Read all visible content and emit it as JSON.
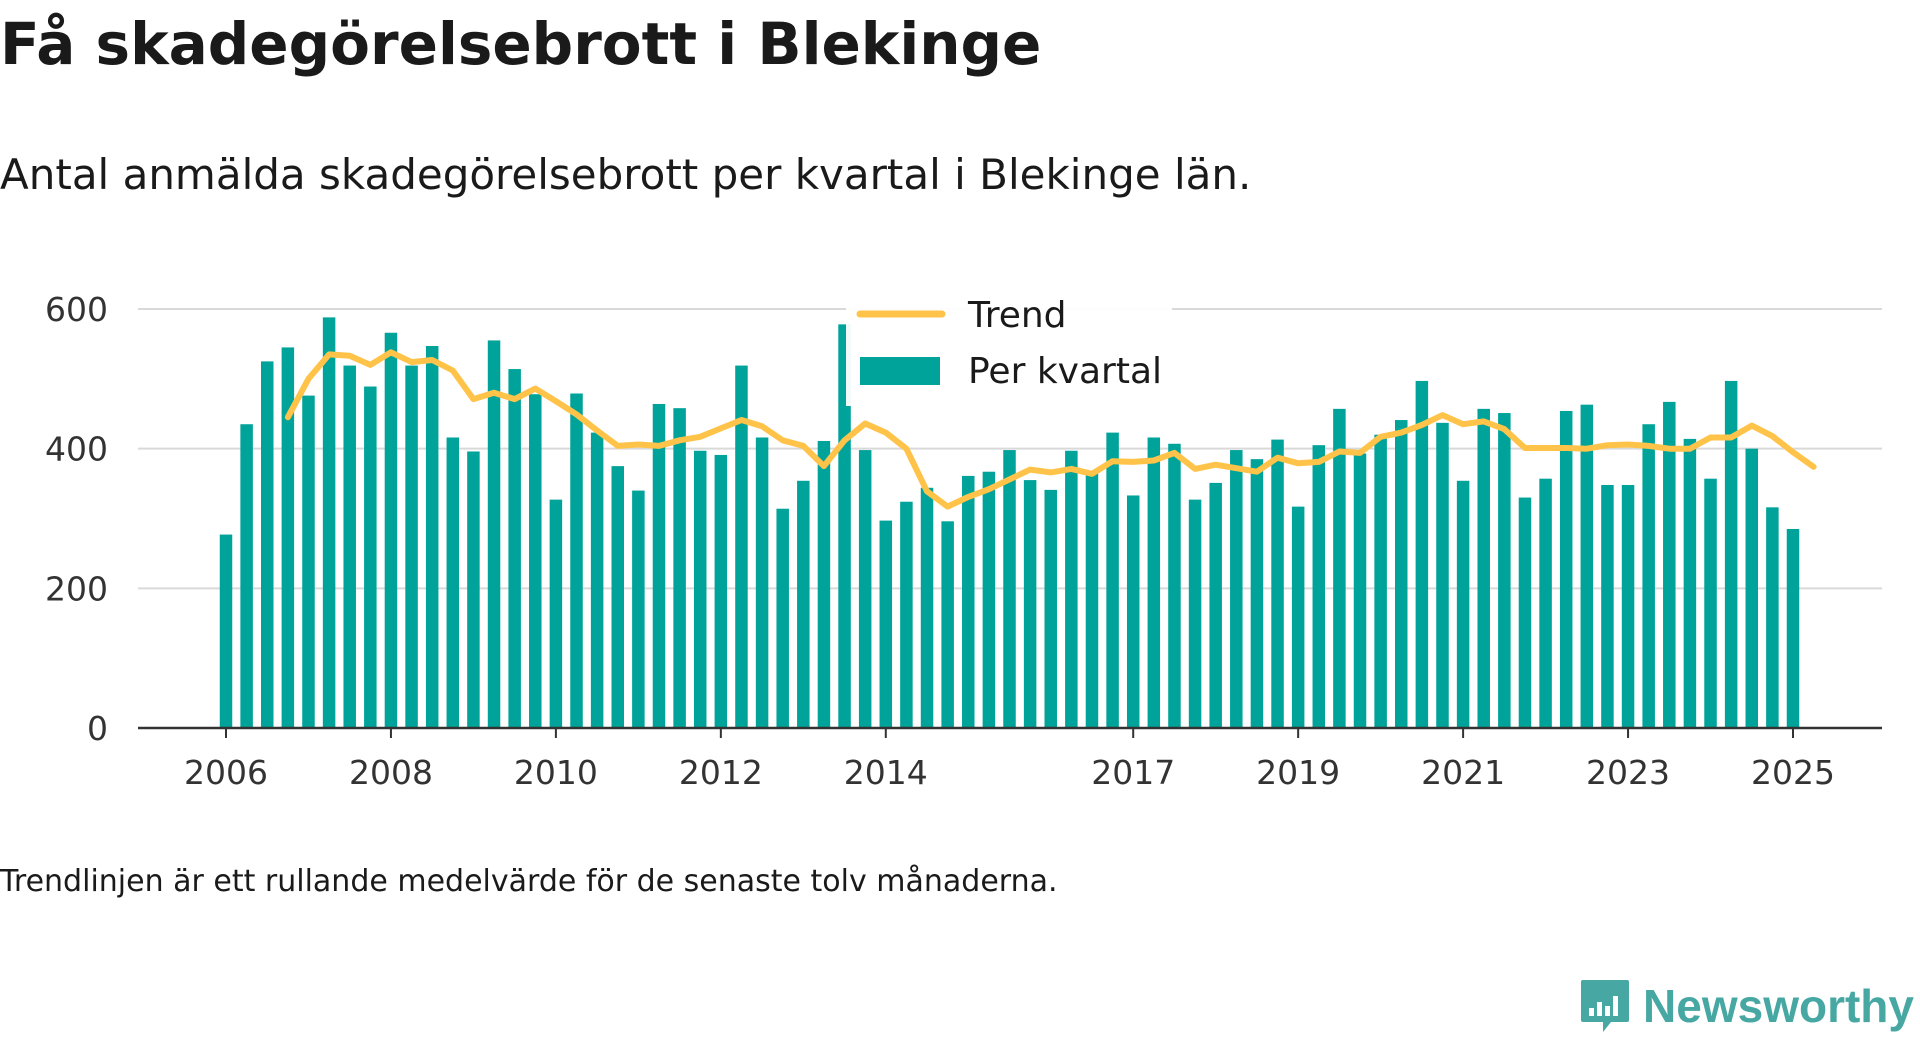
{
  "title": "Få skadegörelsebrott i Blekinge",
  "subtitle": "Antal anmälda skadegörelsebrott per kvartal i Blekinge län.",
  "footnote": "Trendlinjen är ett rullande medelvärde för de senaste tolv månaderna.",
  "brand": {
    "name": "Newsworthy",
    "icon": "newsworthy-logo-icon"
  },
  "colors": {
    "bars": "#00a39a",
    "trend": "#ffc34a",
    "grid": "#d9d9d9",
    "axis": "#333333",
    "brand": "#47a8a3"
  },
  "chart_data": {
    "type": "bar",
    "x_start": "2006 Q1",
    "x_end": "2025 Q1",
    "x_ticks": [
      "2006",
      "2008",
      "2010",
      "2012",
      "2014",
      "2017",
      "2019",
      "2021",
      "2023",
      "2025"
    ],
    "y_ticks": [
      "0",
      "200",
      "400",
      "600"
    ],
    "ylim": [
      0,
      640
    ],
    "grid": true,
    "legend_position": "top-center",
    "series": [
      {
        "name": "Per kvartal",
        "kind": "bar",
        "values": [
          277,
          435,
          525,
          545,
          476,
          588,
          519,
          489,
          566,
          519,
          547,
          416,
          396,
          555,
          514,
          478,
          327,
          479,
          423,
          375,
          340,
          464,
          458,
          397,
          391,
          519,
          416,
          314,
          354,
          411,
          578,
          398,
          297,
          324,
          344,
          296,
          361,
          367,
          398,
          355,
          341,
          397,
          367,
          423,
          333,
          416,
          407,
          327,
          351,
          398,
          385,
          413,
          317,
          405,
          457,
          393,
          420,
          441,
          497,
          437,
          354,
          457,
          451,
          330,
          357,
          454,
          463,
          348,
          348,
          435,
          467,
          414,
          357,
          497,
          400,
          316,
          285
        ]
      },
      {
        "name": "Trend",
        "kind": "line",
        "start_index": 3,
        "values": [
          445,
          500,
          535,
          533,
          520,
          538,
          524,
          527,
          512,
          471,
          480,
          471,
          486,
          468,
          449,
          426,
          404,
          406,
          404,
          412,
          417,
          429,
          441,
          432,
          412,
          404,
          375,
          412,
          436,
          423,
          400,
          339,
          317,
          331,
          342,
          356,
          370,
          366,
          371,
          364,
          382,
          381,
          383,
          394,
          371,
          377,
          372,
          367,
          387,
          379,
          381,
          396,
          394,
          417,
          423,
          434,
          448,
          435,
          439,
          428,
          401,
          401,
          401,
          400,
          405,
          406,
          404,
          400,
          400,
          416,
          416,
          433,
          418,
          395,
          374
        ]
      }
    ]
  }
}
